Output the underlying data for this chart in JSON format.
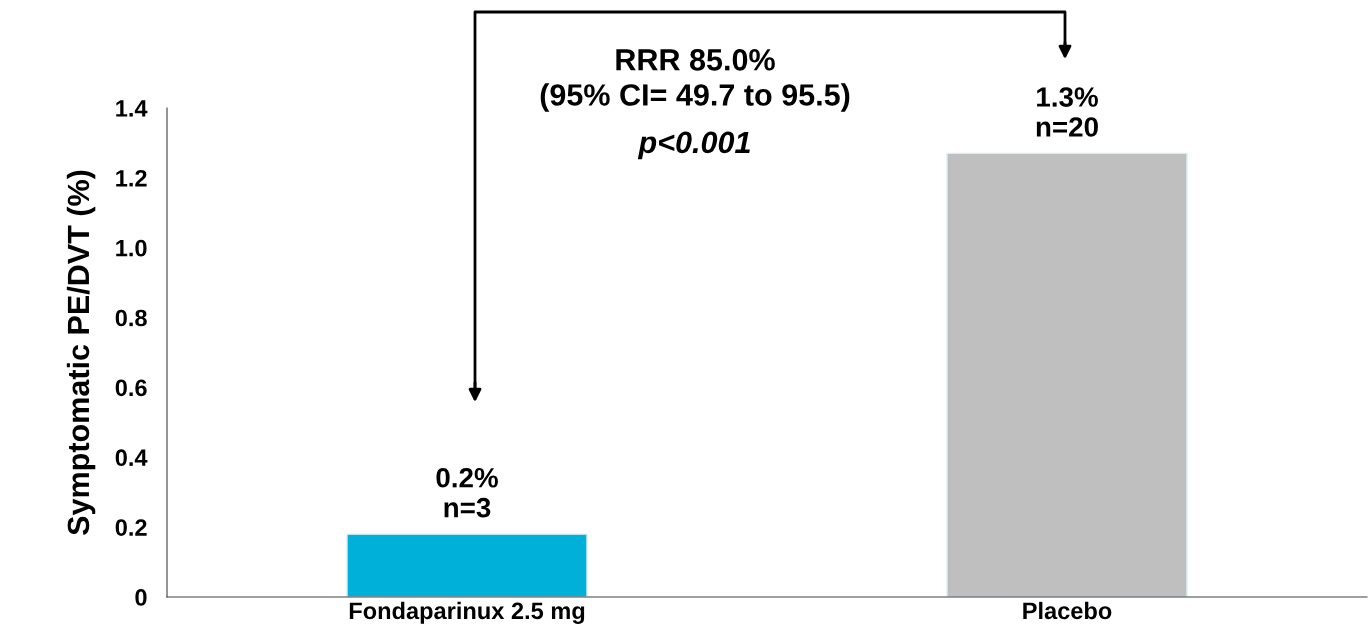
{
  "chart_data": {
    "type": "bar",
    "ylabel": "Symptomatic PE/DVT (%)",
    "categories": [
      "Fondaparinux 2.5 mg",
      "Placebo"
    ],
    "values": [
      0.18,
      1.27
    ],
    "colors": [
      "#00b0d8",
      "#bfbfbf"
    ],
    "value_labels": [
      "0.2%\nn=3",
      "1.3%\nn=20"
    ],
    "ylim": [
      0,
      1.4
    ],
    "yticks": [
      0,
      0.2,
      0.4,
      0.6,
      0.8,
      {
        "value": 1.0,
        "label": "1.0"
      },
      1.2,
      1.4
    ],
    "annotations": [
      "RRR 85.0%\n(95% CI= 49.7 to 95.5)",
      "p<0.001"
    ],
    "grid": false,
    "legend": false
  }
}
